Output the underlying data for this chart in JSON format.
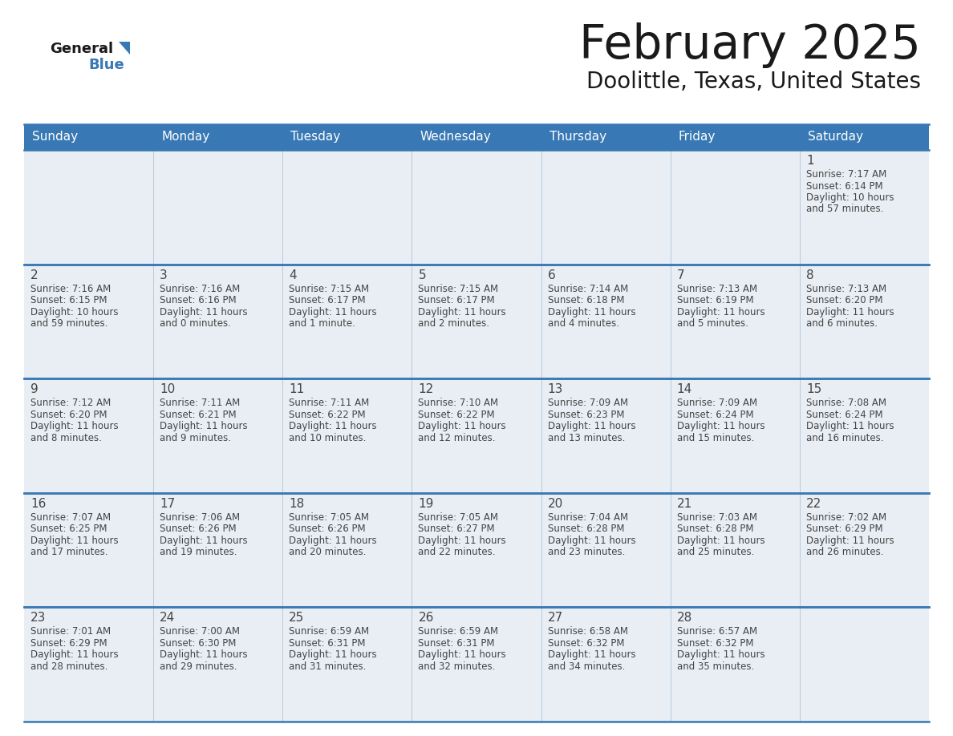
{
  "title": "February 2025",
  "subtitle": "Doolittle, Texas, United States",
  "header_bg": "#3878b4",
  "header_text_color": "#ffffff",
  "cell_bg": "#e8eef4",
  "cell_bg_alt": "#f5f8fb",
  "border_color": "#3878b4",
  "grid_color": "#b0c4d8",
  "text_color": "#444444",
  "days_of_week": [
    "Sunday",
    "Monday",
    "Tuesday",
    "Wednesday",
    "Thursday",
    "Friday",
    "Saturday"
  ],
  "calendar_data": [
    [
      null,
      null,
      null,
      null,
      null,
      null,
      {
        "day": "1",
        "sunrise": "7:17 AM",
        "sunset": "6:14 PM",
        "daylight": "10 hours",
        "daylight2": "and 57 minutes."
      }
    ],
    [
      {
        "day": "2",
        "sunrise": "7:16 AM",
        "sunset": "6:15 PM",
        "daylight": "10 hours",
        "daylight2": "and 59 minutes."
      },
      {
        "day": "3",
        "sunrise": "7:16 AM",
        "sunset": "6:16 PM",
        "daylight": "11 hours",
        "daylight2": "and 0 minutes."
      },
      {
        "day": "4",
        "sunrise": "7:15 AM",
        "sunset": "6:17 PM",
        "daylight": "11 hours",
        "daylight2": "and 1 minute."
      },
      {
        "day": "5",
        "sunrise": "7:15 AM",
        "sunset": "6:17 PM",
        "daylight": "11 hours",
        "daylight2": "and 2 minutes."
      },
      {
        "day": "6",
        "sunrise": "7:14 AM",
        "sunset": "6:18 PM",
        "daylight": "11 hours",
        "daylight2": "and 4 minutes."
      },
      {
        "day": "7",
        "sunrise": "7:13 AM",
        "sunset": "6:19 PM",
        "daylight": "11 hours",
        "daylight2": "and 5 minutes."
      },
      {
        "day": "8",
        "sunrise": "7:13 AM",
        "sunset": "6:20 PM",
        "daylight": "11 hours",
        "daylight2": "and 6 minutes."
      }
    ],
    [
      {
        "day": "9",
        "sunrise": "7:12 AM",
        "sunset": "6:20 PM",
        "daylight": "11 hours",
        "daylight2": "and 8 minutes."
      },
      {
        "day": "10",
        "sunrise": "7:11 AM",
        "sunset": "6:21 PM",
        "daylight": "11 hours",
        "daylight2": "and 9 minutes."
      },
      {
        "day": "11",
        "sunrise": "7:11 AM",
        "sunset": "6:22 PM",
        "daylight": "11 hours",
        "daylight2": "and 10 minutes."
      },
      {
        "day": "12",
        "sunrise": "7:10 AM",
        "sunset": "6:22 PM",
        "daylight": "11 hours",
        "daylight2": "and 12 minutes."
      },
      {
        "day": "13",
        "sunrise": "7:09 AM",
        "sunset": "6:23 PM",
        "daylight": "11 hours",
        "daylight2": "and 13 minutes."
      },
      {
        "day": "14",
        "sunrise": "7:09 AM",
        "sunset": "6:24 PM",
        "daylight": "11 hours",
        "daylight2": "and 15 minutes."
      },
      {
        "day": "15",
        "sunrise": "7:08 AM",
        "sunset": "6:24 PM",
        "daylight": "11 hours",
        "daylight2": "and 16 minutes."
      }
    ],
    [
      {
        "day": "16",
        "sunrise": "7:07 AM",
        "sunset": "6:25 PM",
        "daylight": "11 hours",
        "daylight2": "and 17 minutes."
      },
      {
        "day": "17",
        "sunrise": "7:06 AM",
        "sunset": "6:26 PM",
        "daylight": "11 hours",
        "daylight2": "and 19 minutes."
      },
      {
        "day": "18",
        "sunrise": "7:05 AM",
        "sunset": "6:26 PM",
        "daylight": "11 hours",
        "daylight2": "and 20 minutes."
      },
      {
        "day": "19",
        "sunrise": "7:05 AM",
        "sunset": "6:27 PM",
        "daylight": "11 hours",
        "daylight2": "and 22 minutes."
      },
      {
        "day": "20",
        "sunrise": "7:04 AM",
        "sunset": "6:28 PM",
        "daylight": "11 hours",
        "daylight2": "and 23 minutes."
      },
      {
        "day": "21",
        "sunrise": "7:03 AM",
        "sunset": "6:28 PM",
        "daylight": "11 hours",
        "daylight2": "and 25 minutes."
      },
      {
        "day": "22",
        "sunrise": "7:02 AM",
        "sunset": "6:29 PM",
        "daylight": "11 hours",
        "daylight2": "and 26 minutes."
      }
    ],
    [
      {
        "day": "23",
        "sunrise": "7:01 AM",
        "sunset": "6:29 PM",
        "daylight": "11 hours",
        "daylight2": "and 28 minutes."
      },
      {
        "day": "24",
        "sunrise": "7:00 AM",
        "sunset": "6:30 PM",
        "daylight": "11 hours",
        "daylight2": "and 29 minutes."
      },
      {
        "day": "25",
        "sunrise": "6:59 AM",
        "sunset": "6:31 PM",
        "daylight": "11 hours",
        "daylight2": "and 31 minutes."
      },
      {
        "day": "26",
        "sunrise": "6:59 AM",
        "sunset": "6:31 PM",
        "daylight": "11 hours",
        "daylight2": "and 32 minutes."
      },
      {
        "day": "27",
        "sunrise": "6:58 AM",
        "sunset": "6:32 PM",
        "daylight": "11 hours",
        "daylight2": "and 34 minutes."
      },
      {
        "day": "28",
        "sunrise": "6:57 AM",
        "sunset": "6:32 PM",
        "daylight": "11 hours",
        "daylight2": "and 35 minutes."
      },
      null
    ]
  ],
  "logo_general_color": "#1a1a1a",
  "logo_blue_color": "#3878b4",
  "logo_triangle_color": "#3878b4"
}
